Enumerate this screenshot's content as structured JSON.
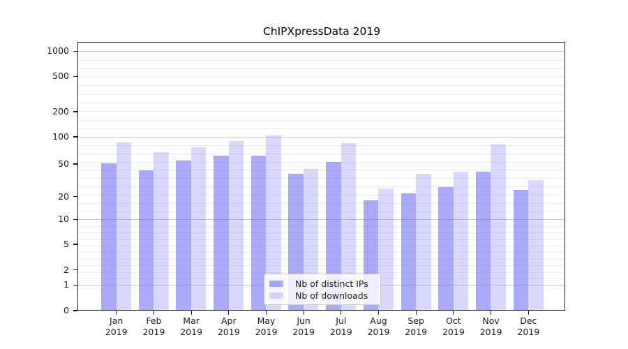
{
  "chart_data": {
    "type": "bar",
    "title": "ChIPXpressData 2019",
    "categories": [
      "Jan",
      "Feb",
      "Mar",
      "Apr",
      "May",
      "Jun",
      "Jul",
      "Aug",
      "Sep",
      "Oct",
      "Nov",
      "Dec"
    ],
    "x_tick_second_line": "2019",
    "series": [
      {
        "name": "Nb of distinct IPs",
        "values": [
          51,
          42,
          55,
          62,
          62,
          38,
          53,
          18,
          22,
          26,
          40,
          24
        ],
        "color": "rgba(101,101,242,0.55)"
      },
      {
        "name": "Nb of downloads",
        "values": [
          87,
          68,
          76,
          90,
          104,
          44,
          86,
          25,
          38,
          40,
          82,
          32
        ],
        "color": "rgba(101,101,242,0.25)"
      }
    ],
    "y_ticks": [
      0,
      1,
      2,
      5,
      10,
      20,
      50,
      100,
      200,
      500,
      1000
    ],
    "y_axis_scale": "symlog",
    "ylim": [
      0,
      1300
    ],
    "grid": true,
    "legend_position": "lower center"
  }
}
